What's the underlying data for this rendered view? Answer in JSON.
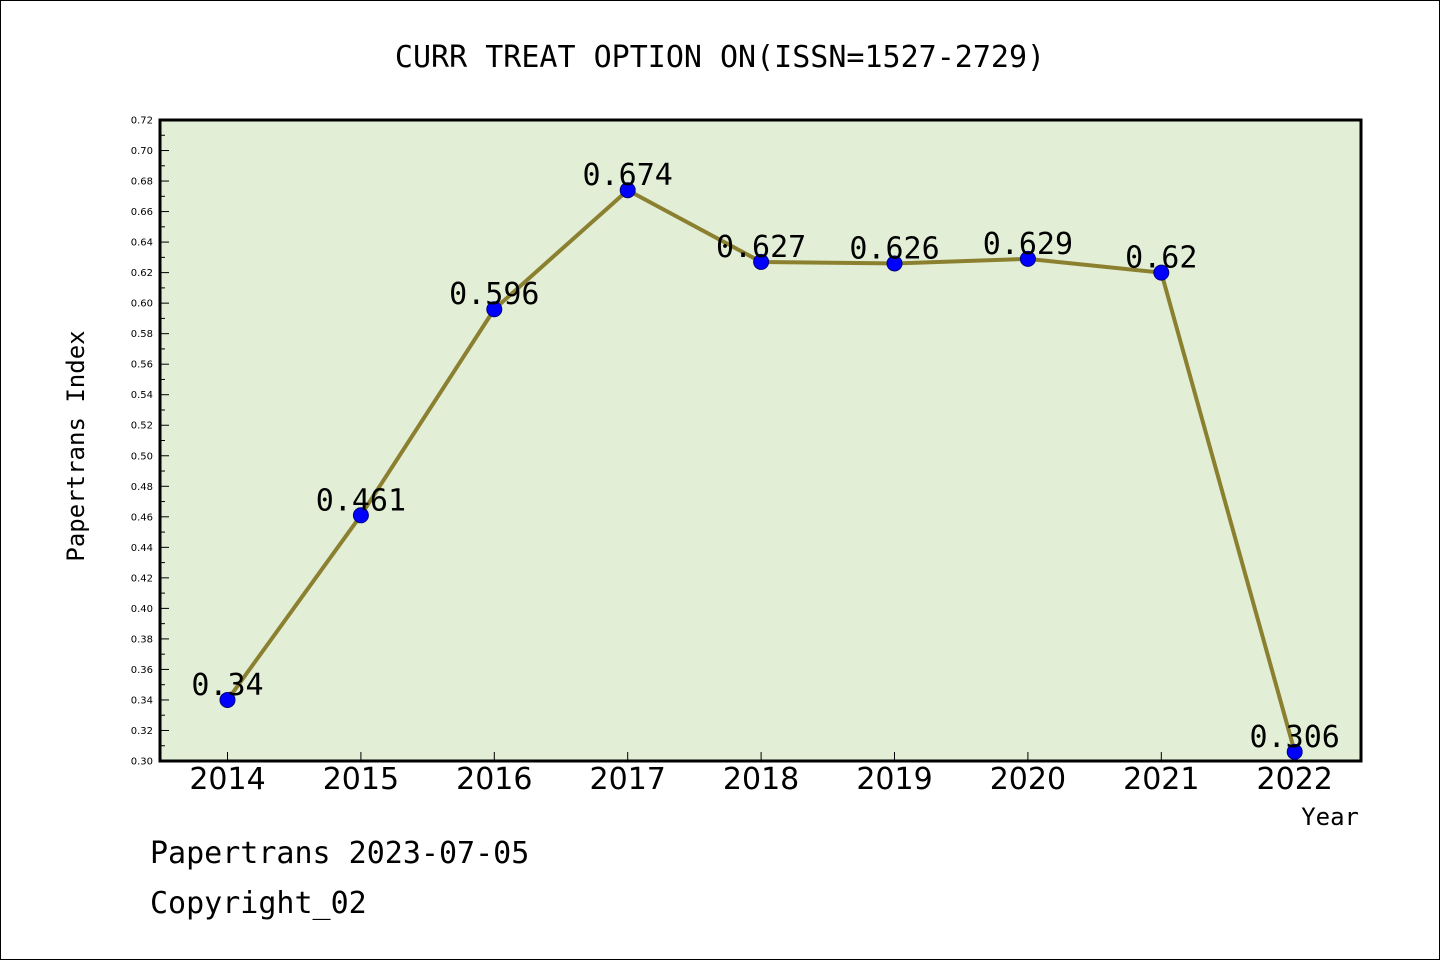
{
  "chart_data": {
    "type": "line",
    "title": "CURR TREAT OPTION ON(ISSN=1527-2729)",
    "xlabel": "Year",
    "ylabel": "Papertrans Index",
    "x": [
      "2014",
      "2015",
      "2016",
      "2017",
      "2018",
      "2019",
      "2020",
      "2021",
      "2022"
    ],
    "series": [
      {
        "values": [
          0.34,
          0.461,
          0.596,
          0.674,
          0.627,
          0.626,
          0.629,
          0.62,
          0.306
        ],
        "data_labels": [
          "0.34",
          "0.461",
          "0.596",
          "0.674",
          "0.627",
          "0.626",
          "0.629",
          "0.62",
          "0.306"
        ]
      }
    ],
    "ylim": [
      0.3,
      0.72
    ],
    "y_ticks": [
      "0.30",
      "0.32",
      "0.34",
      "0.36",
      "0.38",
      "0.40",
      "0.42",
      "0.44",
      "0.46",
      "0.48",
      "0.50",
      "0.52",
      "0.54",
      "0.56",
      "0.58",
      "0.60",
      "0.62",
      "0.64",
      "0.66",
      "0.68",
      "0.70",
      "0.72"
    ],
    "grid": false,
    "legend": "none",
    "colors": {
      "plot_background": "#e2efd6",
      "line": "#8b8030",
      "marker": "#0000ff"
    }
  },
  "footer": {
    "line1": "Papertrans 2023-07-05",
    "line2": "Copyright_02"
  }
}
